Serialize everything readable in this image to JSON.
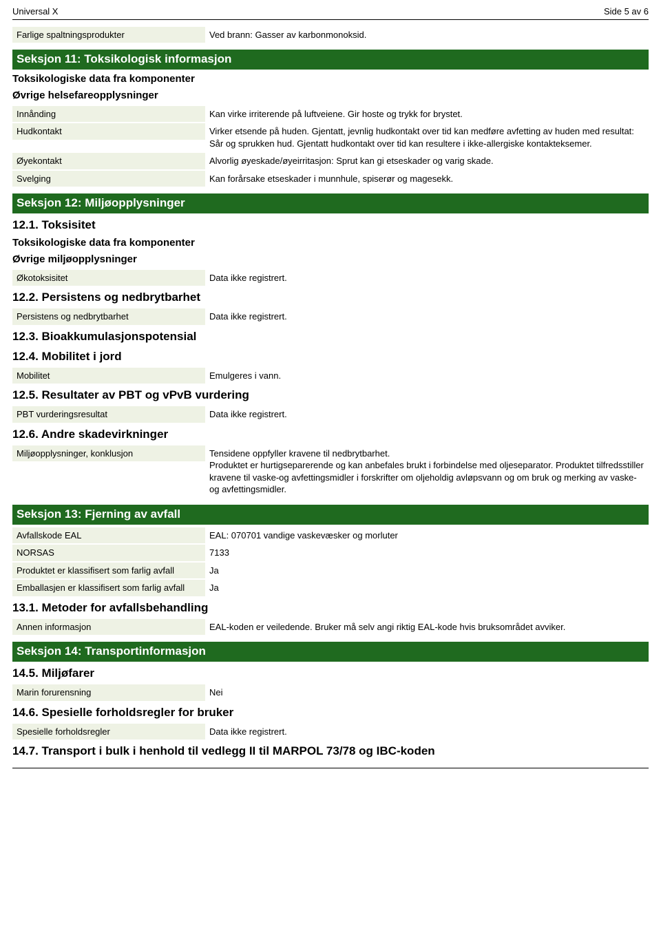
{
  "header": {
    "doc_title": "Universal X",
    "page_info": "Side 5 av 6"
  },
  "intro_row": {
    "label": "Farlige spaltningsprodukter",
    "value": "Ved brann: Gasser av karbonmonoksid."
  },
  "s11": {
    "title": "Seksjon 11: Toksikologisk informasjon",
    "sub1": "Toksikologiske data fra komponenter",
    "sub2": "Øvrige helsefareopplysninger",
    "rows": [
      {
        "label": "Innånding",
        "value": "Kan virke irriterende på luftveiene. Gir hoste og trykk for brystet."
      },
      {
        "label": "Hudkontakt",
        "value": "Virker etsende på huden. Gjentatt, jevnlig hudkontakt over tid kan medføre avfetting av huden med resultat: Sår og sprukken hud. Gjentatt hudkontakt over tid kan resultere i ikke-allergiske kontakteksemer."
      },
      {
        "label": "Øyekontakt",
        "value": "Alvorlig øyeskade/øyeirritasjon: Sprut kan gi etseskader og varig skade."
      },
      {
        "label": "Svelging",
        "value": "Kan forårsake etseskader i munnhule, spiserør og magesekk."
      }
    ]
  },
  "s12": {
    "title": "Seksjon 12: Miljøopplysninger",
    "h12_1": "12.1. Toksisitet",
    "sub1": "Toksikologiske data fra komponenter",
    "sub2": "Øvrige miljøopplysninger",
    "row_okotox": {
      "label": "Økotoksisitet",
      "value": "Data ikke registrert."
    },
    "h12_2": "12.2. Persistens og nedbrytbarhet",
    "row_pers": {
      "label": "Persistens og nedbrytbarhet",
      "value": "Data ikke registrert."
    },
    "h12_3": "12.3. Bioakkumulasjonspotensial",
    "h12_4": "12.4. Mobilitet i jord",
    "row_mob": {
      "label": "Mobilitet",
      "value": "Emulgeres i vann."
    },
    "h12_5": "12.5. Resultater av PBT og vPvB vurdering",
    "row_pbt": {
      "label": "PBT vurderingsresultat",
      "value": "Data ikke registrert."
    },
    "h12_6": "12.6. Andre skadevirkninger",
    "row_konkl": {
      "label": "Miljøopplysninger, konklusjon",
      "value": "Tensidene oppfyller kravene til nedbrytbarhet.\nProduktet er hurtigseparerende og kan anbefales brukt i forbindelse med oljeseparator. Produktet tilfredsstiller kravene til vaske-og avfettingsmidler i forskrifter om oljeholdig avløpsvann og om bruk og merking av vaske-og avfettingsmidler."
    }
  },
  "s13": {
    "title": "Seksjon 13: Fjerning av avfall",
    "rows": [
      {
        "label": "Avfallskode EAL",
        "value": "EAL: 070701 vandige vaskevæsker og morluter"
      },
      {
        "label": "NORSAS",
        "value": "7133"
      },
      {
        "label": "Produktet er klassifisert som farlig avfall",
        "value": "Ja"
      },
      {
        "label": "Emballasjen er klassifisert som farlig avfall",
        "value": "Ja"
      }
    ],
    "h13_1": "13.1. Metoder for avfallsbehandling",
    "row_annen": {
      "label": "Annen informasjon",
      "value": "EAL-koden er veiledende. Bruker må selv angi riktig EAL-kode hvis bruksområdet avviker."
    }
  },
  "s14": {
    "title": "Seksjon 14: Transportinformasjon",
    "h14_5": "14.5. Miljøfarer",
    "row_marin": {
      "label": "Marin forurensning",
      "value": "Nei"
    },
    "h14_6": "14.6. Spesielle forholdsregler for bruker",
    "row_spes": {
      "label": "Spesielle forholdsregler",
      "value": "Data ikke registrert."
    },
    "h14_7": "14.7. Transport i bulk i henhold til vedlegg II til MARPOL 73/78 og IBC-koden"
  },
  "colors": {
    "section_header_bg": "#1f6a1f",
    "section_header_fg": "#ffffff",
    "label_bg": "#eef2e4",
    "text": "#000000",
    "page_bg": "#ffffff"
  }
}
